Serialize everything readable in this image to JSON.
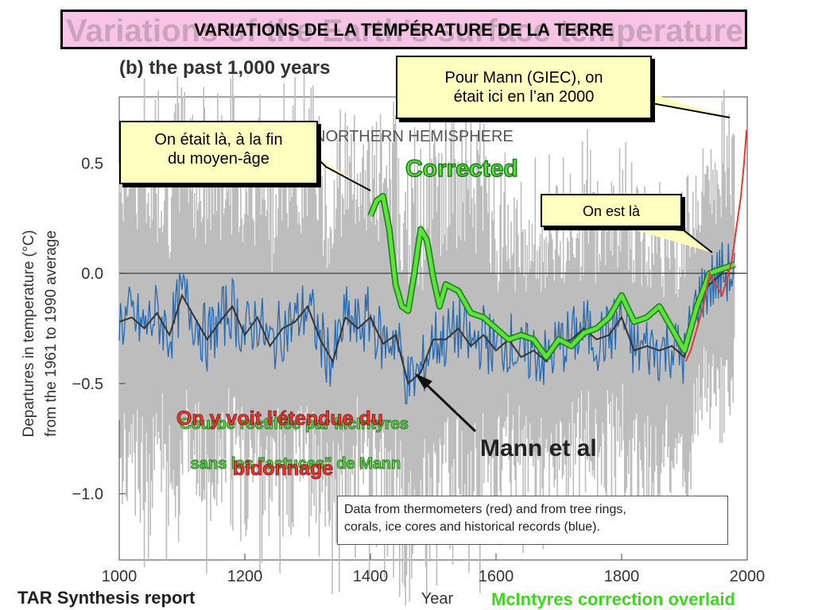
{
  "banner": {
    "title": "VARIATIONS DE LA TEMPÉRATURE DE LA TERRE",
    "ghost_text": "Variations of the Earth's surface temperature for:"
  },
  "figure": {
    "panel_label": "(b) the past 1,000 years",
    "region_label": "NORTHERN HEMISPHERE",
    "data_source_note": [
      "Data from thermometers (red) and from tree rings,",
      "corals, ice cores and historical records (blue)."
    ],
    "credit": "TAR Synthesis report",
    "overlay_note": "McIntyres correction overlaid"
  },
  "callouts": {
    "mann_2000": [
      "Pour Mann (GIEC), on",
      "était ici en l’an 2000"
    ],
    "middle_ages": [
      "On était là, à la fin",
      "du moyen-âge"
    ],
    "now": "On est là"
  },
  "annotations": {
    "corrected": "Corrected",
    "mann_et_al": "Mann et al",
    "red_line1": "On y voit l'étendue du",
    "red_line2": "bidonnage",
    "green_line1": "Courbe rectifiée par McIntyres",
    "green_line2": "sans les \"astuces\" de Mann"
  },
  "colors": {
    "thermometer": "#e8392f",
    "proxy": "#2469b3",
    "uncertainty": "#bdbdbd",
    "smoothed": "#333333",
    "corrected": "#5ce23a",
    "callout_fill": "#ffffbf",
    "banner_fill": "#f9c3e6"
  },
  "chart_data": {
    "type": "line",
    "xlabel": "Year",
    "ylabel": "Departures in temperature (°C)\nfrom the 1961 to 1990 average",
    "xlim": [
      1000,
      2000
    ],
    "ylim": [
      -1.3,
      0.8
    ],
    "xticks": [
      1000,
      1200,
      1400,
      1600,
      1800,
      2000
    ],
    "yticks": [
      0.5,
      0.0,
      -0.5,
      -1.0
    ],
    "ytick_labels": [
      "0.5",
      "0.0",
      "−0.5",
      "−1.0"
    ],
    "series": [
      {
        "name": "Mann et al",
        "x": [
          1000,
          1020,
          1040,
          1060,
          1080,
          1100,
          1120,
          1140,
          1160,
          1180,
          1200,
          1220,
          1240,
          1260,
          1280,
          1300,
          1320,
          1340,
          1360,
          1380,
          1400,
          1420,
          1440,
          1460,
          1480,
          1500,
          1520,
          1540,
          1560,
          1580,
          1600,
          1620,
          1640,
          1660,
          1680,
          1700,
          1720,
          1740,
          1760,
          1780,
          1800,
          1820,
          1840,
          1860,
          1880,
          1900,
          1920,
          1940,
          1960,
          1980
        ],
        "y": [
          -0.22,
          -0.2,
          -0.25,
          -0.18,
          -0.28,
          -0.1,
          -0.2,
          -0.3,
          -0.22,
          -0.15,
          -0.28,
          -0.2,
          -0.33,
          -0.25,
          -0.22,
          -0.15,
          -0.3,
          -0.4,
          -0.2,
          -0.25,
          -0.2,
          -0.32,
          -0.28,
          -0.5,
          -0.45,
          -0.3,
          -0.3,
          -0.25,
          -0.33,
          -0.28,
          -0.35,
          -0.3,
          -0.38,
          -0.35,
          -0.4,
          -0.32,
          -0.3,
          -0.25,
          -0.3,
          -0.28,
          -0.2,
          -0.35,
          -0.33,
          -0.35,
          -0.33,
          -0.38,
          -0.12,
          -0.05,
          0.0,
          0.0
        ]
      },
      {
        "name": "Corrected",
        "x": [
          1400,
          1410,
          1420,
          1430,
          1440,
          1450,
          1460,
          1470,
          1480,
          1490,
          1500,
          1510,
          1520,
          1540,
          1560,
          1580,
          1600,
          1620,
          1640,
          1660,
          1680,
          1700,
          1720,
          1740,
          1760,
          1780,
          1800,
          1820,
          1840,
          1860,
          1880,
          1900,
          1920,
          1940,
          1960,
          1980
        ],
        "y": [
          0.26,
          0.33,
          0.35,
          0.2,
          -0.05,
          -0.15,
          -0.17,
          0.0,
          0.2,
          0.15,
          -0.02,
          -0.15,
          -0.05,
          -0.08,
          -0.18,
          -0.2,
          -0.25,
          -0.3,
          -0.28,
          -0.3,
          -0.38,
          -0.3,
          -0.33,
          -0.27,
          -0.25,
          -0.2,
          -0.1,
          -0.22,
          -0.2,
          -0.15,
          -0.25,
          -0.35,
          -0.15,
          0.0,
          0.02,
          0.04
        ]
      },
      {
        "name": "thermometers",
        "x": [
          1902,
          1910,
          1920,
          1930,
          1940,
          1950,
          1960,
          1970,
          1975,
          1980,
          1985,
          1990,
          1995,
          1999
        ],
        "y": [
          -0.4,
          -0.35,
          -0.25,
          -0.15,
          0.0,
          -0.05,
          -0.1,
          0.0,
          0.05,
          0.15,
          0.25,
          0.35,
          0.5,
          0.65
        ]
      }
    ]
  }
}
